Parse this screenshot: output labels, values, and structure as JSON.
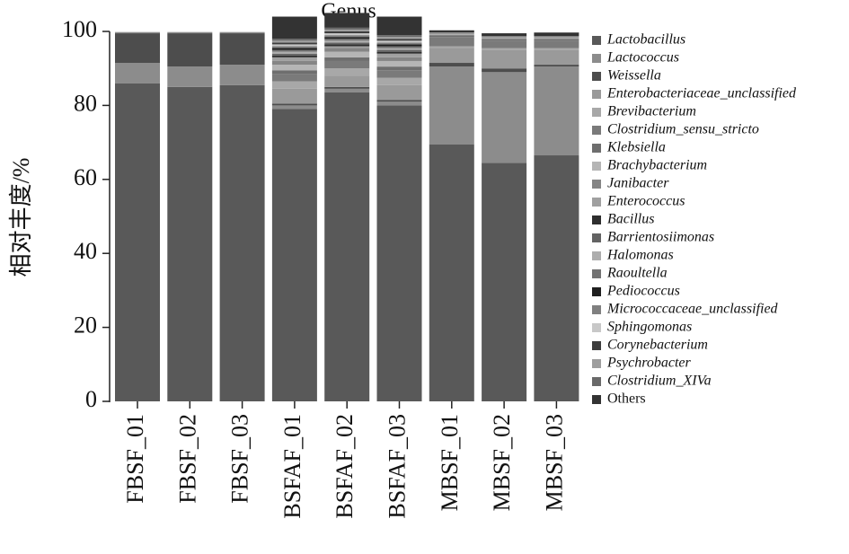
{
  "chart_data": {
    "type": "stacked_bar",
    "title": "Genus",
    "y_label": "相对丰度/%",
    "categories": [
      "FBSF_01",
      "FBSF_02",
      "FBSF_03",
      "BSFAF_01",
      "BSFAF_02",
      "BSFAF_03",
      "MBSF_01",
      "MBSF_02",
      "MBSF_03"
    ],
    "ylim": [
      0,
      100
    ],
    "yticks": [
      0,
      20,
      40,
      60,
      80,
      100
    ],
    "series": [
      {
        "name": "Lactobacillus",
        "color": "#595959",
        "values": [
          86,
          85,
          85.5,
          79,
          83.5,
          80,
          69.5,
          64.5,
          66.5
        ]
      },
      {
        "name": "Lactococcus",
        "color": "#8c8c8c",
        "values": [
          5.5,
          5.5,
          5.5,
          1,
          1,
          1,
          21,
          24.5,
          24
        ]
      },
      {
        "name": "Weissella",
        "color": "#4d4d4d",
        "values": [
          8,
          9,
          8.5,
          0.5,
          0.5,
          0.5,
          1,
          1,
          0.5
        ]
      },
      {
        "name": "Enterobacteriaceae_unclassified",
        "color": "#9a9a9a",
        "values": [
          0.2,
          0.2,
          0.2,
          4,
          3,
          4,
          4,
          5,
          4
        ]
      },
      {
        "name": "Brevibacterium",
        "color": "#a8a8a8",
        "values": [
          0,
          0,
          0,
          2,
          2,
          2,
          0.5,
          0.5,
          0.5
        ]
      },
      {
        "name": "Clostridium_sensu_stricto",
        "color": "#7a7a7a",
        "values": [
          0,
          0,
          0,
          2,
          2,
          2,
          2.5,
          2,
          2
        ]
      },
      {
        "name": "Klebsiella",
        "color": "#6e6e6e",
        "values": [
          0,
          0,
          0,
          1,
          1,
          1,
          0.5,
          0.5,
          0.5
        ]
      },
      {
        "name": "Brachybacterium",
        "color": "#b5b5b5",
        "values": [
          0,
          0,
          0,
          1.5,
          1.5,
          1.5,
          0.2,
          0.2,
          0.2
        ]
      },
      {
        "name": "Janibacter",
        "color": "#858585",
        "values": [
          0,
          0,
          0,
          1,
          1,
          1,
          0.2,
          0.2,
          0.2
        ]
      },
      {
        "name": "Enterococcus",
        "color": "#a0a0a0",
        "values": [
          0,
          0,
          0,
          1,
          0.5,
          1,
          0.3,
          0.3,
          0.3
        ]
      },
      {
        "name": "Bacillus",
        "color": "#2e2e2e",
        "values": [
          0,
          0,
          0,
          0.5,
          0.5,
          0.5,
          0,
          0,
          0
        ]
      },
      {
        "name": "Barrientosiimonas",
        "color": "#636363",
        "values": [
          0,
          0,
          0,
          0.5,
          0.5,
          0.5,
          0,
          0,
          0
        ]
      },
      {
        "name": "Halomonas",
        "color": "#adadad",
        "values": [
          0,
          0,
          0,
          0.5,
          0.5,
          0.5,
          0,
          0,
          0
        ]
      },
      {
        "name": "Raoultella",
        "color": "#737373",
        "values": [
          0,
          0,
          0,
          0.5,
          0.5,
          0.5,
          0,
          0,
          0
        ]
      },
      {
        "name": "Pediococcus",
        "color": "#1f1f1f",
        "values": [
          0,
          0,
          0,
          0.5,
          0.5,
          0.5,
          0,
          0,
          0
        ]
      },
      {
        "name": "Micrococcaceae_unclassified",
        "color": "#808080",
        "values": [
          0,
          0,
          0,
          0.5,
          0.5,
          0.5,
          0,
          0,
          0
        ]
      },
      {
        "name": "Sphingomonas",
        "color": "#c8c8c8",
        "values": [
          0,
          0,
          0,
          0.5,
          0.5,
          0.5,
          0,
          0,
          0
        ]
      },
      {
        "name": "Corynebacterium",
        "color": "#3d3d3d",
        "values": [
          0,
          0,
          0,
          0.5,
          0.5,
          0.5,
          0,
          0,
          0
        ]
      },
      {
        "name": "Psychrobacter",
        "color": "#9e9e9e",
        "values": [
          0,
          0,
          0,
          0.5,
          0.5,
          0.5,
          0,
          0,
          0
        ]
      },
      {
        "name": "Clostridium_XIVa",
        "color": "#696969",
        "values": [
          0,
          0,
          0,
          0.5,
          0.5,
          0.5,
          0,
          0,
          0
        ]
      },
      {
        "name": "Others",
        "color": "#333333",
        "values": [
          0.1,
          0.1,
          0.1,
          6,
          4,
          5,
          0.6,
          0.8,
          1
        ]
      }
    ]
  }
}
